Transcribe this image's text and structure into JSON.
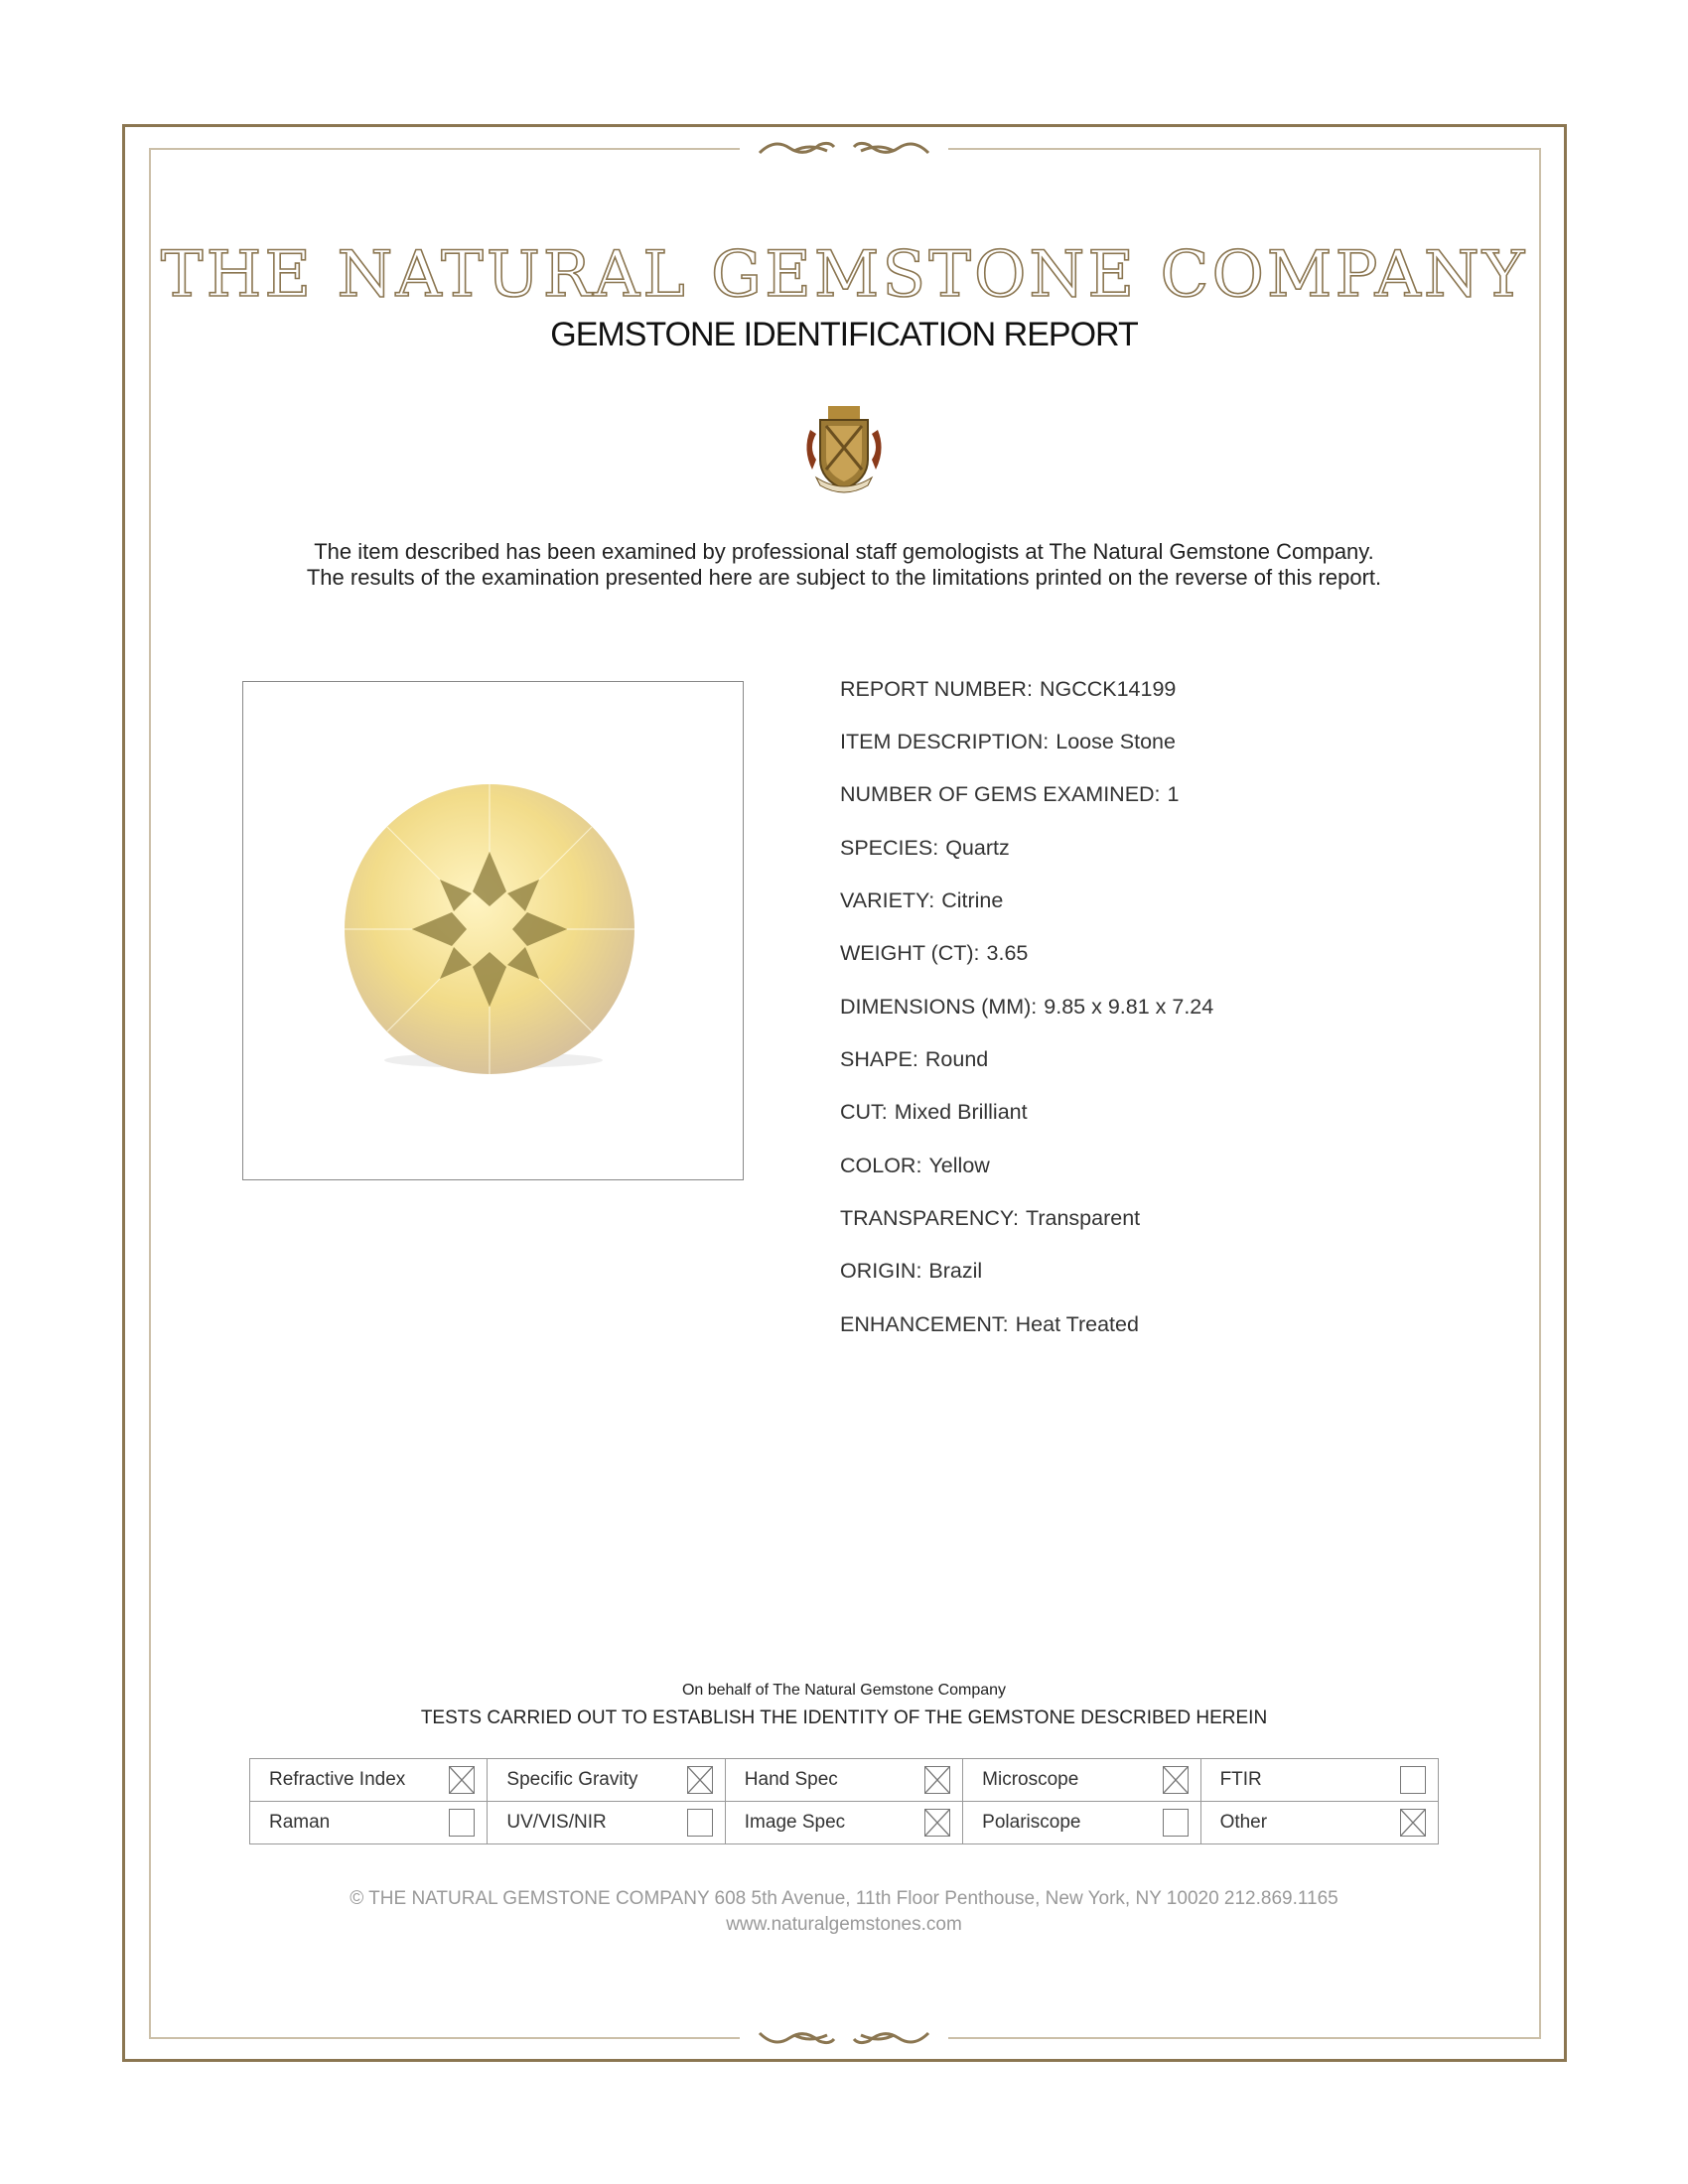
{
  "header": {
    "company_name": "THE NATURAL GEMSTONE COMPANY",
    "report_title": "GEMSTONE IDENTIFICATION REPORT"
  },
  "intro": {
    "line1": "The item described has been examined by professional staff gemologists at The Natural Gemstone Company.",
    "line2": "The results of the examination presented here are subject to the limitations printed on the reverse of this report."
  },
  "details": [
    {
      "label": "REPORT NUMBER:",
      "value": "NGCCK14199"
    },
    {
      "label": "ITEM DESCRIPTION:",
      "value": "Loose Stone"
    },
    {
      "label": "NUMBER OF GEMS EXAMINED:",
      "value": "1"
    },
    {
      "label": "SPECIES:",
      "value": "Quartz"
    },
    {
      "label": "VARIETY:",
      "value": "Citrine"
    },
    {
      "label": "WEIGHT (CT):",
      "value": "3.65"
    },
    {
      "label": "DIMENSIONS (MM):",
      "value": "9.85 x 9.81 x 7.24"
    },
    {
      "label": "SHAPE:",
      "value": "Round"
    },
    {
      "label": "CUT:",
      "value": "Mixed Brilliant"
    },
    {
      "label": "COLOR:",
      "value": "Yellow"
    },
    {
      "label": "TRANSPARENCY:",
      "value": "Transparent"
    },
    {
      "label": "ORIGIN:",
      "value": "Brazil"
    },
    {
      "label": "ENHANCEMENT:",
      "value": "Heat Treated"
    }
  ],
  "signature": {
    "on_behalf": "On behalf of The Natural Gemstone Company"
  },
  "tests": {
    "heading": "TESTS CARRIED OUT TO ESTABLISH THE IDENTITY OF THE GEMSTONE DESCRIBED HEREIN",
    "rows": [
      [
        {
          "label": "Refractive Index",
          "checked": true
        },
        {
          "label": "Specific Gravity",
          "checked": true
        },
        {
          "label": "Hand Spec",
          "checked": true
        },
        {
          "label": "Microscope",
          "checked": true
        },
        {
          "label": "FTIR",
          "checked": false
        }
      ],
      [
        {
          "label": "Raman",
          "checked": false
        },
        {
          "label": "UV/VIS/NIR",
          "checked": false
        },
        {
          "label": "Image Spec",
          "checked": true
        },
        {
          "label": "Polariscope",
          "checked": false
        },
        {
          "label": "Other",
          "checked": true
        }
      ]
    ]
  },
  "footer": {
    "address_line": "© THE NATURAL GEMSTONE COMPANY  608 5th Avenue, 11th Floor Penthouse, New York, NY  10020   212.869.1165",
    "website": "www.naturalgemstones.com"
  },
  "colors": {
    "border_gold": "#8b7651",
    "inner_border": "#cbbfa8",
    "gem_yellow": "#f2dc8a"
  },
  "icons": {
    "ornament": "scroll-flourish",
    "crest": "coat-of-arms-crest",
    "checkbox_checked": "x-box",
    "checkbox_empty": "empty-box"
  }
}
